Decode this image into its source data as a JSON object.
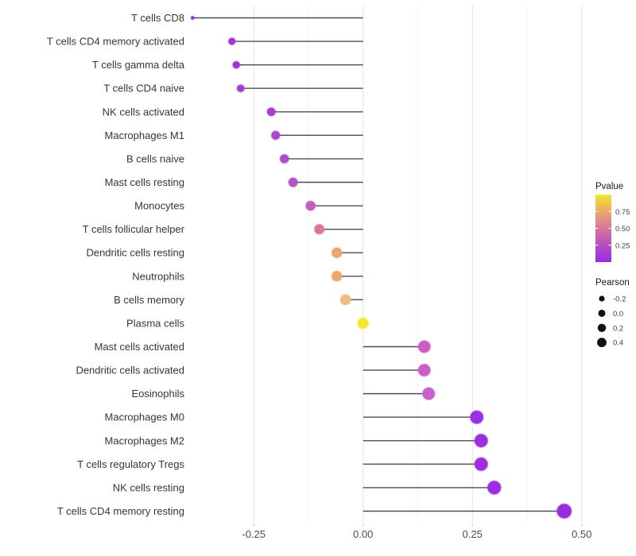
{
  "chart_data": {
    "type": "lollipop",
    "orientation": "horizontal",
    "title": "",
    "xlabel": "",
    "ylabel": "",
    "x_axis": {
      "range": [
        -0.425,
        0.52
      ],
      "major_ticks": [
        -0.25,
        0.0,
        0.25,
        0.5
      ],
      "tick_labels": [
        "-0.25",
        "0.00",
        "0.25",
        "0.50"
      ],
      "baseline": 0.0,
      "grid": "vertical major and minor gridlines, very light gray, white background"
    },
    "points": [
      {
        "label": "T cells CD8",
        "pearson": -0.39,
        "color": "#9a2ce0",
        "pvalue_approx": 0.05
      },
      {
        "label": "T cells CD4 memory activated",
        "pearson": -0.3,
        "color": "#a235da",
        "pvalue_approx": 0.08
      },
      {
        "label": "T cells gamma delta",
        "pearson": -0.29,
        "color": "#a235da",
        "pvalue_approx": 0.08
      },
      {
        "label": "T cells CD4 naive",
        "pearson": -0.28,
        "color": "#a73cd5",
        "pvalue_approx": 0.1
      },
      {
        "label": "NK cells activated",
        "pearson": -0.21,
        "color": "#a940d2",
        "pvalue_approx": 0.11
      },
      {
        "label": "Macrophages M1",
        "pearson": -0.2,
        "color": "#ac46cf",
        "pvalue_approx": 0.13
      },
      {
        "label": "B cells naive",
        "pearson": -0.18,
        "color": "#b14dca",
        "pvalue_approx": 0.16
      },
      {
        "label": "Mast cells resting",
        "pearson": -0.16,
        "color": "#b552c6",
        "pvalue_approx": 0.19
      },
      {
        "label": "Monocytes",
        "pearson": -0.12,
        "color": "#c35cbf",
        "pvalue_approx": 0.27
      },
      {
        "label": "T cells follicular helper",
        "pearson": -0.1,
        "color": "#d9759b",
        "pvalue_approx": 0.5
      },
      {
        "label": "Dendritic cells resting",
        "pearson": -0.06,
        "color": "#eda76d",
        "pvalue_approx": 0.73
      },
      {
        "label": "Neutrophils",
        "pearson": -0.06,
        "color": "#eda76d",
        "pvalue_approx": 0.73
      },
      {
        "label": "B cells memory",
        "pearson": -0.04,
        "color": "#f0bd7e",
        "pvalue_approx": 0.82
      },
      {
        "label": "Plasma cells",
        "pearson": 0.0,
        "color": "#f2ea2a",
        "pvalue_approx": 0.97
      },
      {
        "label": "Mast cells activated",
        "pearson": 0.14,
        "color": "#cb5ec6",
        "pvalue_approx": 0.32
      },
      {
        "label": "Dendritic cells activated",
        "pearson": 0.14,
        "color": "#cb5ec6",
        "pvalue_approx": 0.32
      },
      {
        "label": "Eosinophils",
        "pearson": 0.15,
        "color": "#c960c9",
        "pvalue_approx": 0.31
      },
      {
        "label": "Macrophages M0",
        "pearson": 0.26,
        "color": "#9b2fe1",
        "pvalue_approx": 0.07
      },
      {
        "label": "Macrophages M2",
        "pearson": 0.27,
        "color": "#9b2fe1",
        "pvalue_approx": 0.07
      },
      {
        "label": "T cells regulatory  Tregs",
        "pearson": 0.27,
        "color": "#9b2fe1",
        "pvalue_approx": 0.07
      },
      {
        "label": "NK cells resting",
        "pearson": 0.3,
        "color": "#9c2ee2",
        "pvalue_approx": 0.06
      },
      {
        "label": "T cells CD4 memory resting",
        "pearson": 0.46,
        "color": "#9a2ce0",
        "pvalue_approx": 0.05
      }
    ],
    "legend_pvalue": {
      "title": "Pvalue",
      "tick_values": [
        0.75,
        0.5,
        0.25
      ],
      "tick_labels": [
        "0.75",
        "0.50",
        "0.25"
      ],
      "gradient_bottom_to_top": [
        "#9a2ce0",
        "#b44fc4",
        "#d9759b",
        "#eda76d",
        "#f2ea2a"
      ],
      "range_bottom_to_top": [
        0,
        1
      ]
    },
    "legend_pearson": {
      "title": "Pearson",
      "entries": [
        "-0.2",
        "0.0",
        "0.2",
        "0.4"
      ],
      "dot_color": "#111111"
    },
    "style": {
      "stem_color": "#4d4d4d",
      "grid_major_color": "#e4e4e4",
      "grid_minor_color": "#f3f3f3",
      "axis_text_color": "#4d4d4d",
      "category_text_color": "#363636",
      "background": "#ffffff"
    }
  }
}
